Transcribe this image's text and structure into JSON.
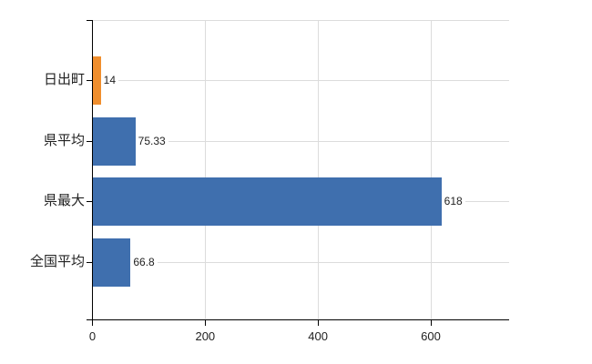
{
  "chart_data": {
    "type": "bar",
    "orientation": "horizontal",
    "title": "",
    "categories": [
      "日出町",
      "県平均",
      "県最大",
      "全国平均"
    ],
    "values": [
      14,
      75.33,
      618,
      66.8
    ],
    "value_labels": [
      "14",
      "75.33",
      "618",
      "66.8"
    ],
    "highlight_category": "日出町",
    "xticks": [
      0,
      200,
      400,
      600
    ],
    "xtick_labels": [
      "0",
      "200",
      "400",
      "600"
    ],
    "xlim": [
      0,
      739
    ],
    "grid": true,
    "legend": false,
    "colors": {
      "highlight_bar": "#f08e2d",
      "default_bar": "#3f6fae",
      "grid_line": "#dcdcdc",
      "axis_line": "#000000",
      "text": "#222222"
    }
  }
}
